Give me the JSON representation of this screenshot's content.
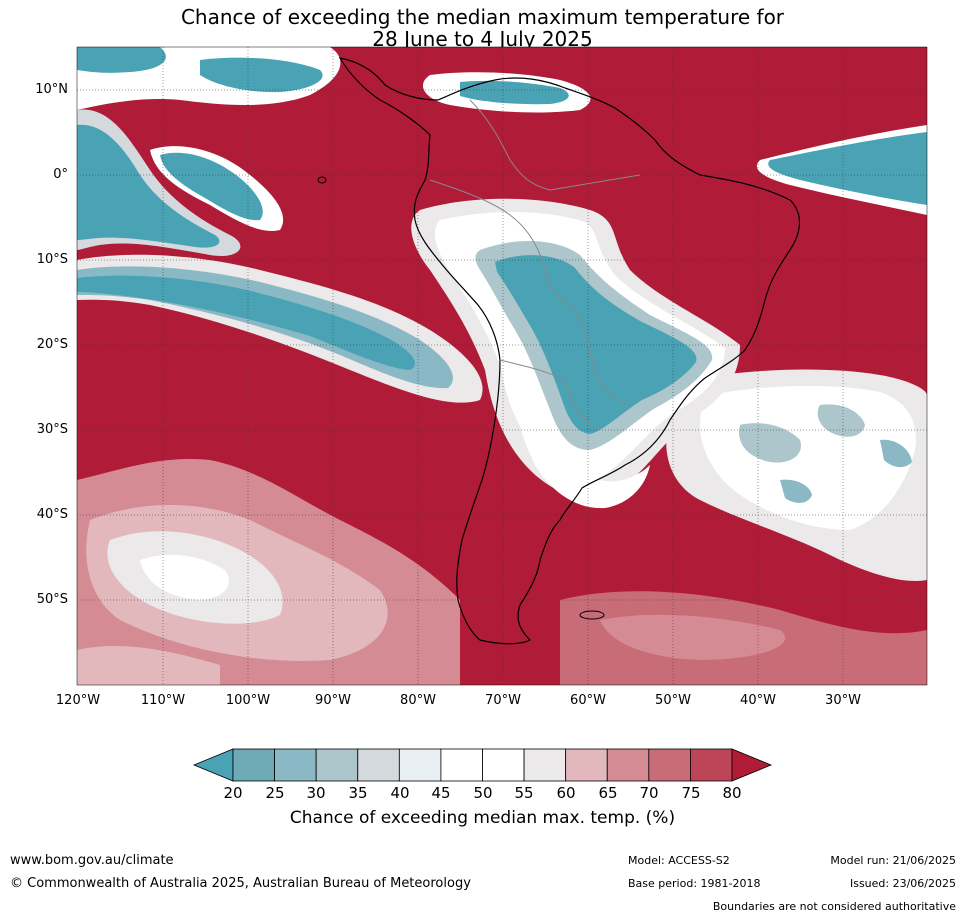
{
  "title": {
    "line1": "Chance of exceeding the median maximum temperature for",
    "line2": "28 June to 4 July 2025"
  },
  "map": {
    "lat_labels": [
      "10°N",
      "0°",
      "10°S",
      "20°S",
      "30°S",
      "40°S",
      "50°S"
    ],
    "lon_labels": [
      "120°W",
      "110°W",
      "100°W",
      "90°W",
      "80°W",
      "70°W",
      "60°W",
      "50°W",
      "40°W",
      "30°W"
    ],
    "region": "South America and surrounding oceans",
    "colors": {
      "above": "#b01c38",
      "below": "#4aa3b4",
      "neutral": "#ffffff"
    }
  },
  "colorbar": {
    "ticks": [
      "20",
      "25",
      "30",
      "35",
      "40",
      "45",
      "50",
      "55",
      "60",
      "65",
      "70",
      "75",
      "80"
    ],
    "colors": [
      "#4aa3b4",
      "#6ea9b6",
      "#8ab8c5",
      "#acc6cb",
      "#d3d9dc",
      "#e9f0f3",
      "#ffffff",
      "#ffffff",
      "#ebe9ea",
      "#e2b8bd",
      "#d48b93",
      "#c86c77",
      "#bd4558",
      "#b01c38"
    ],
    "label": "Chance of exceeding median max. temp. (%)"
  },
  "footer": {
    "website": "www.bom.gov.au/climate",
    "copyright": "© Commonwealth of Australia 2025, Australian Bureau of Meteorology",
    "model": "Model: ACCESS-S2",
    "base_period": "Base period: 1981-2018",
    "model_run": "Model run: 21/06/2025",
    "issued": "Issued: 23/06/2025",
    "disclaimer": "Boundaries are not considered authoritative"
  }
}
